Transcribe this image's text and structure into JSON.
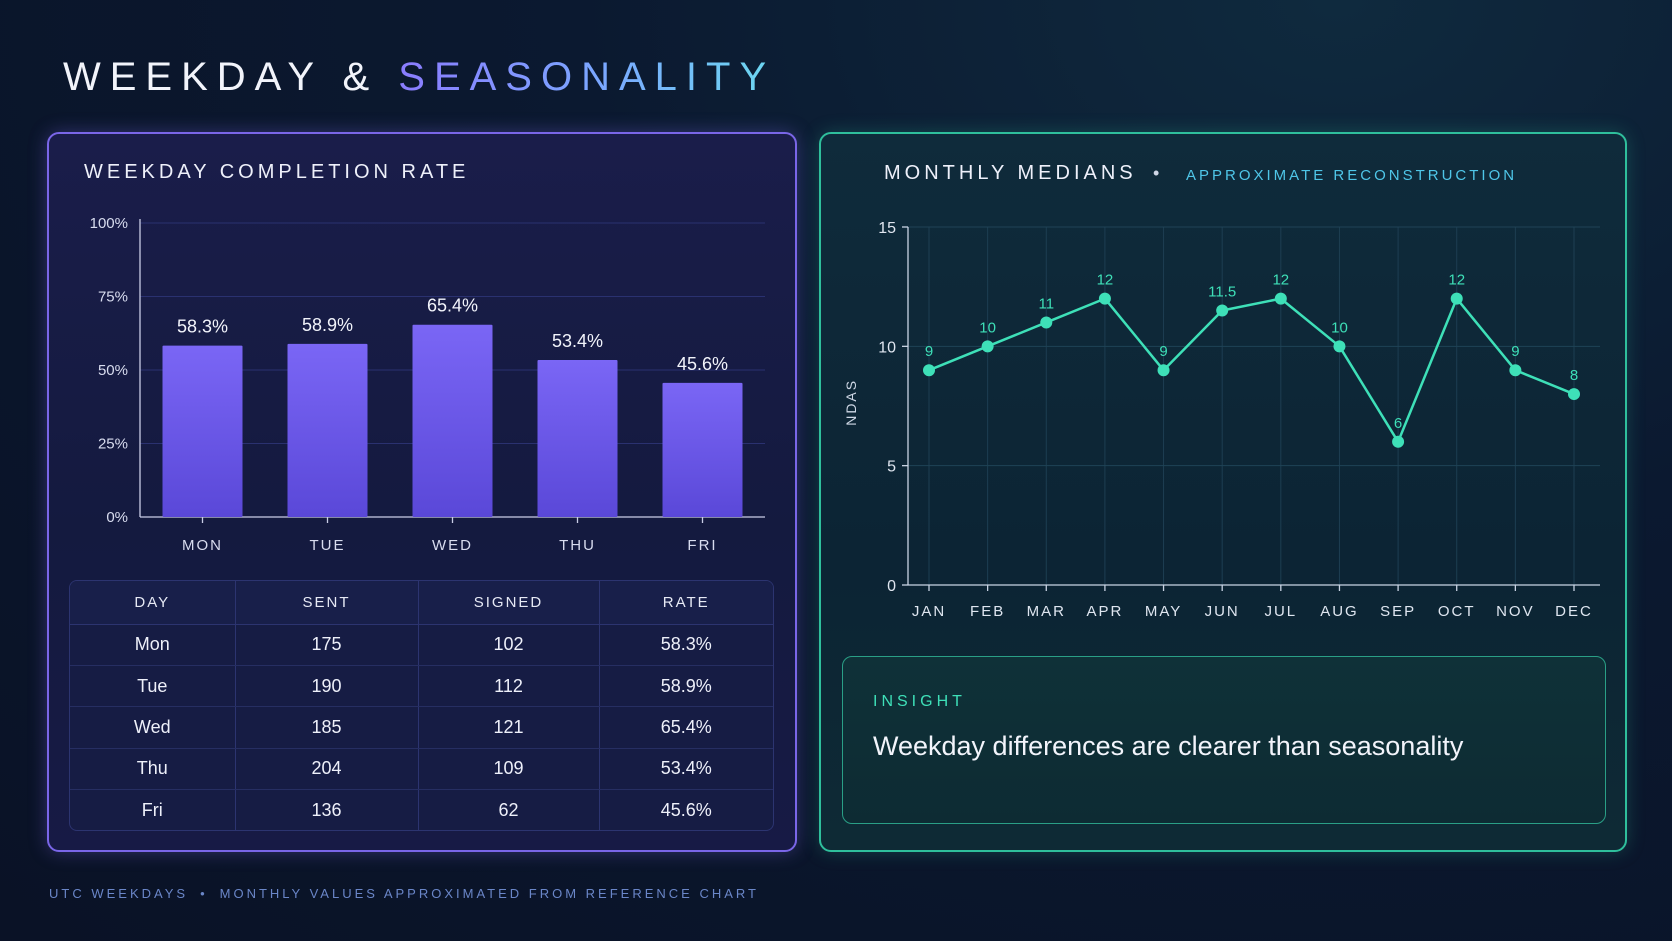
{
  "title": {
    "main": "WEEKDAY &",
    "accent": "SEASONALITY"
  },
  "weekday_panel": {
    "heading": "WEEKDAY COMPLETION RATE"
  },
  "monthly_panel": {
    "heading": "MONTHLY MEDIANS",
    "separator": "•",
    "subheading": "APPROXIMATE RECONSTRUCTION"
  },
  "colors": {
    "bar": "#7a66f5",
    "line": "#3ee0b8",
    "weekday_border": "#7a66e8",
    "monthly_border": "#2fbf9c"
  },
  "chart_data": [
    {
      "type": "bar",
      "categories": [
        "MON",
        "TUE",
        "WED",
        "THU",
        "FRI"
      ],
      "values": [
        58.3,
        58.9,
        65.4,
        53.4,
        45.6
      ],
      "data_labels": [
        "58.3%",
        "58.9%",
        "65.4%",
        "53.4%",
        "45.6%"
      ],
      "yticks": [
        "0%",
        "25%",
        "50%",
        "75%",
        "100%"
      ],
      "ylim": [
        0,
        100
      ],
      "grid": true
    },
    {
      "type": "line",
      "categories": [
        "JAN",
        "FEB",
        "MAR",
        "APR",
        "MAY",
        "JUN",
        "JUL",
        "AUG",
        "SEP",
        "OCT",
        "NOV",
        "DEC"
      ],
      "values": [
        9,
        10,
        11,
        12,
        9,
        11.5,
        12,
        10,
        6,
        12,
        9,
        8
      ],
      "data_labels": [
        "9",
        "10",
        "11",
        "12",
        "9",
        "11.5",
        "12",
        "10",
        "6",
        "12",
        "9",
        "8"
      ],
      "ylabel": "NDAS",
      "yticks": [
        "0",
        "5",
        "10",
        "15"
      ],
      "ylim": [
        0,
        15
      ],
      "grid": true
    }
  ],
  "table": {
    "headers": [
      "DAY",
      "SENT",
      "SIGNED",
      "RATE"
    ],
    "rows": [
      [
        "Mon",
        "175",
        "102",
        "58.3%"
      ],
      [
        "Tue",
        "190",
        "112",
        "58.9%"
      ],
      [
        "Wed",
        "185",
        "121",
        "65.4%"
      ],
      [
        "Thu",
        "204",
        "109",
        "53.4%"
      ],
      [
        "Fri",
        "136",
        "62",
        "45.6%"
      ]
    ]
  },
  "insight": {
    "label": "INSIGHT",
    "text": "Weekday differences are clearer than seasonality"
  },
  "footer": {
    "left": "UTC WEEKDAYS",
    "separator": "•",
    "right": "MONTHLY VALUES APPROXIMATED FROM REFERENCE CHART"
  }
}
